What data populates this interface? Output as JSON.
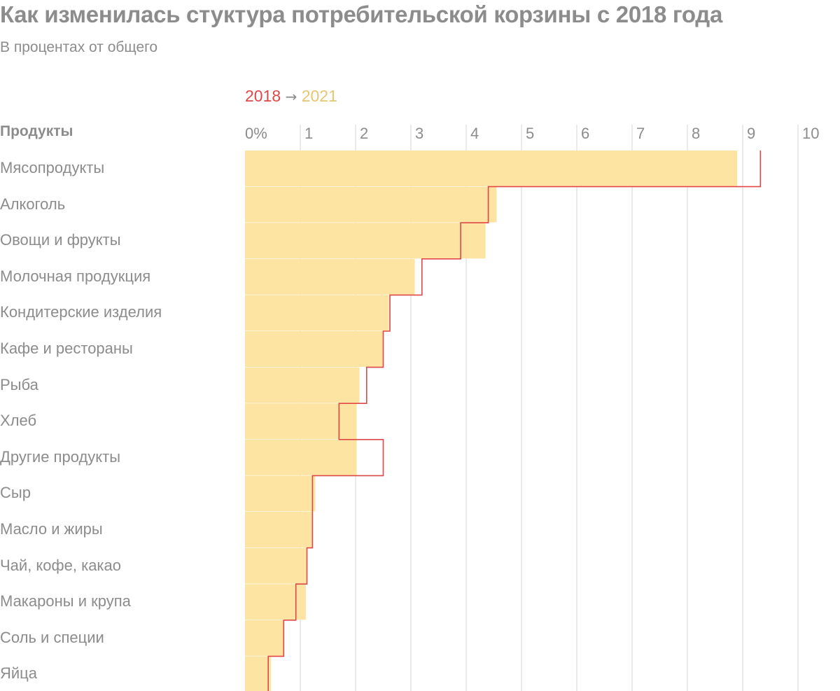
{
  "title": "Как изменилась стуктура потребительской корзины с 2018 года",
  "subtitle": "В процентах от общего",
  "legend": {
    "from": "2018",
    "arrow": "→",
    "to": "2021"
  },
  "colors": {
    "bar_2021": "#fee4a2",
    "line_2018": "#e04848",
    "grid": "#d6d6d6",
    "text": "#8c8c8c"
  },
  "chart_data": {
    "type": "bar",
    "orientation": "horizontal",
    "category_header": "Продукты",
    "categories": [
      "Мясопродукты",
      "Алкоголь",
      "Овощи и фрукты",
      "Молочная продукция",
      "Кондитерские изделия",
      "Кафе и рестораны",
      "Рыба",
      "Хлеб",
      "Другие продукты",
      "Сыр",
      "Масло и жиры",
      "Чай, кофе, какао",
      "Макароны и крупа",
      "Соль и специи",
      "Яйца"
    ],
    "series": [
      {
        "name": "2021",
        "style": "bar",
        "values": [
          8.9,
          4.55,
          4.35,
          3.07,
          2.6,
          2.5,
          2.07,
          2.02,
          2.02,
          1.27,
          1.22,
          1.12,
          1.1,
          0.7,
          0.47
        ]
      },
      {
        "name": "2018",
        "style": "step-line",
        "values": [
          9.32,
          4.4,
          3.9,
          3.2,
          2.62,
          2.5,
          2.2,
          1.7,
          2.5,
          1.22,
          1.22,
          1.12,
          0.92,
          0.7,
          0.42
        ]
      }
    ],
    "ticks": [
      "0%",
      "1",
      "2",
      "3",
      "4",
      "5",
      "6",
      "7",
      "8",
      "9",
      "10"
    ],
    "xlim": [
      0,
      10
    ],
    "grid": true,
    "legend_position": "top"
  }
}
